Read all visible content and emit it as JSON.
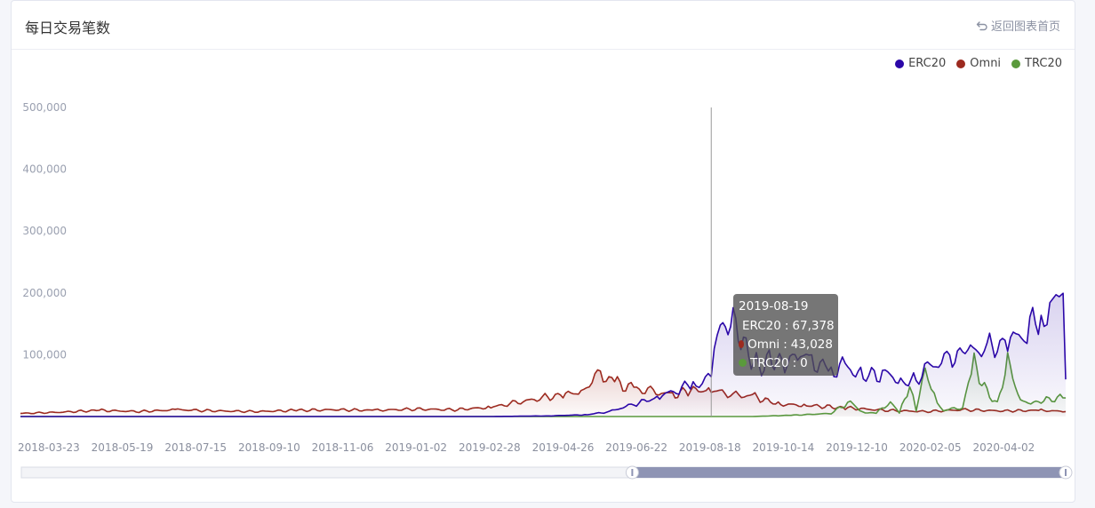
{
  "header": {
    "title": "每日交易笔数",
    "back_label": "返回图表首页"
  },
  "colors": {
    "erc20": "#2b07a8",
    "omni": "#9c2a1f",
    "trc20": "#5a9a3c"
  },
  "chart_data": {
    "type": "line",
    "title": "",
    "xlabel": "",
    "ylabel": "",
    "ylim": [
      0,
      500000
    ],
    "yticks": [
      0,
      100000,
      200000,
      300000,
      400000,
      500000
    ],
    "ytick_labels": [
      "",
      "100,000",
      "200,000",
      "300,000",
      "400,000",
      "500,000"
    ],
    "x_tick_labels": [
      "2018-03-23",
      "2018-05-19",
      "2018-07-15",
      "2018-09-10",
      "2018-11-06",
      "2019-01-02",
      "2019-02-28",
      "2019-04-26",
      "2019-06-22",
      "2019-08-18",
      "2019-10-14",
      "2019-12-10",
      "2020-02-05",
      "2020-04-02"
    ],
    "x_range": [
      "2018-03-01",
      "2020-05-20"
    ],
    "legend_position": "top-right",
    "grid": false,
    "series": [
      {
        "name": "ERC20",
        "points": [
          [
            "2018-03-01",
            0
          ],
          [
            "2019-03-01",
            0
          ],
          [
            "2019-04-15",
            1000
          ],
          [
            "2019-05-15",
            3000
          ],
          [
            "2019-06-01",
            8000
          ],
          [
            "2019-06-20",
            20000
          ],
          [
            "2019-07-10",
            32000
          ],
          [
            "2019-07-25",
            45000
          ],
          [
            "2019-08-05",
            52000
          ],
          [
            "2019-08-12",
            60000
          ],
          [
            "2019-08-19",
            67378
          ],
          [
            "2019-08-26",
            140000
          ],
          [
            "2019-09-05",
            160000
          ],
          [
            "2019-09-15",
            110000
          ],
          [
            "2019-09-25",
            80000
          ],
          [
            "2019-10-05",
            95000
          ],
          [
            "2019-10-15",
            85000
          ],
          [
            "2019-10-25",
            100000
          ],
          [
            "2019-11-05",
            90000
          ],
          [
            "2019-11-20",
            75000
          ],
          [
            "2019-12-01",
            80000
          ],
          [
            "2019-12-15",
            65000
          ],
          [
            "2020-01-01",
            70000
          ],
          [
            "2020-01-15",
            55000
          ],
          [
            "2020-01-25",
            60000
          ],
          [
            "2020-02-05",
            80000
          ],
          [
            "2020-02-20",
            95000
          ],
          [
            "2020-03-05",
            105000
          ],
          [
            "2020-03-20",
            110000
          ],
          [
            "2020-04-05",
            120000
          ],
          [
            "2020-04-20",
            140000
          ],
          [
            "2020-05-01",
            160000
          ],
          [
            "2020-05-10",
            175000
          ],
          [
            "2020-05-15",
            190000
          ],
          [
            "2020-05-18",
            200000
          ],
          [
            "2020-05-20",
            60000
          ]
        ]
      },
      {
        "name": "Omni",
        "points": [
          [
            "2018-03-01",
            5000
          ],
          [
            "2018-04-01",
            7000
          ],
          [
            "2018-05-01",
            10000
          ],
          [
            "2018-06-01",
            8000
          ],
          [
            "2018-07-01",
            11000
          ],
          [
            "2018-08-01",
            9000
          ],
          [
            "2018-09-01",
            8000
          ],
          [
            "2018-10-01",
            10000
          ],
          [
            "2018-11-01",
            11000
          ],
          [
            "2018-12-01",
            10000
          ],
          [
            "2019-01-01",
            12000
          ],
          [
            "2019-02-01",
            11000
          ],
          [
            "2019-03-01",
            15000
          ],
          [
            "2019-03-20",
            22000
          ],
          [
            "2019-04-10",
            30000
          ],
          [
            "2019-04-26",
            35000
          ],
          [
            "2019-05-10",
            40000
          ],
          [
            "2019-05-25",
            70000
          ],
          [
            "2019-06-05",
            55000
          ],
          [
            "2019-06-20",
            45000
          ],
          [
            "2019-07-05",
            40000
          ],
          [
            "2019-07-20",
            35000
          ],
          [
            "2019-08-01",
            42000
          ],
          [
            "2019-08-19",
            43028
          ],
          [
            "2019-09-05",
            35000
          ],
          [
            "2019-09-20",
            33000
          ],
          [
            "2019-10-10",
            20000
          ],
          [
            "2019-11-01",
            18000
          ],
          [
            "2019-12-01",
            14000
          ],
          [
            "2020-01-01",
            10000
          ],
          [
            "2020-02-01",
            8000
          ],
          [
            "2020-03-01",
            11000
          ],
          [
            "2020-04-01",
            9000
          ],
          [
            "2020-05-01",
            10000
          ],
          [
            "2020-05-20",
            8000
          ]
        ]
      },
      {
        "name": "TRC20",
        "points": [
          [
            "2018-03-01",
            0
          ],
          [
            "2019-09-20",
            0
          ],
          [
            "2019-10-20",
            2000
          ],
          [
            "2019-11-20",
            5000
          ],
          [
            "2019-12-05",
            25000
          ],
          [
            "2019-12-12",
            8000
          ],
          [
            "2019-12-25",
            5000
          ],
          [
            "2020-01-05",
            25000
          ],
          [
            "2020-01-12",
            5000
          ],
          [
            "2020-01-20",
            50000
          ],
          [
            "2020-01-25",
            10000
          ],
          [
            "2020-02-01",
            70000
          ],
          [
            "2020-02-08",
            35000
          ],
          [
            "2020-02-15",
            10000
          ],
          [
            "2020-03-01",
            15000
          ],
          [
            "2020-03-10",
            85000
          ],
          [
            "2020-03-20",
            40000
          ],
          [
            "2020-03-28",
            20000
          ],
          [
            "2020-04-05",
            90000
          ],
          [
            "2020-04-15",
            25000
          ],
          [
            "2020-04-25",
            22000
          ],
          [
            "2020-05-05",
            28000
          ],
          [
            "2020-05-20",
            30000
          ]
        ]
      }
    ],
    "tooltip": {
      "date": "2019-08-19",
      "rows": [
        {
          "name": "ERC20",
          "value": "67,378"
        },
        {
          "name": "Omni",
          "value": "43,028"
        },
        {
          "name": "TRC20",
          "value": "0"
        }
      ]
    },
    "zoom": {
      "start": 0.585,
      "end": 1.0
    }
  }
}
